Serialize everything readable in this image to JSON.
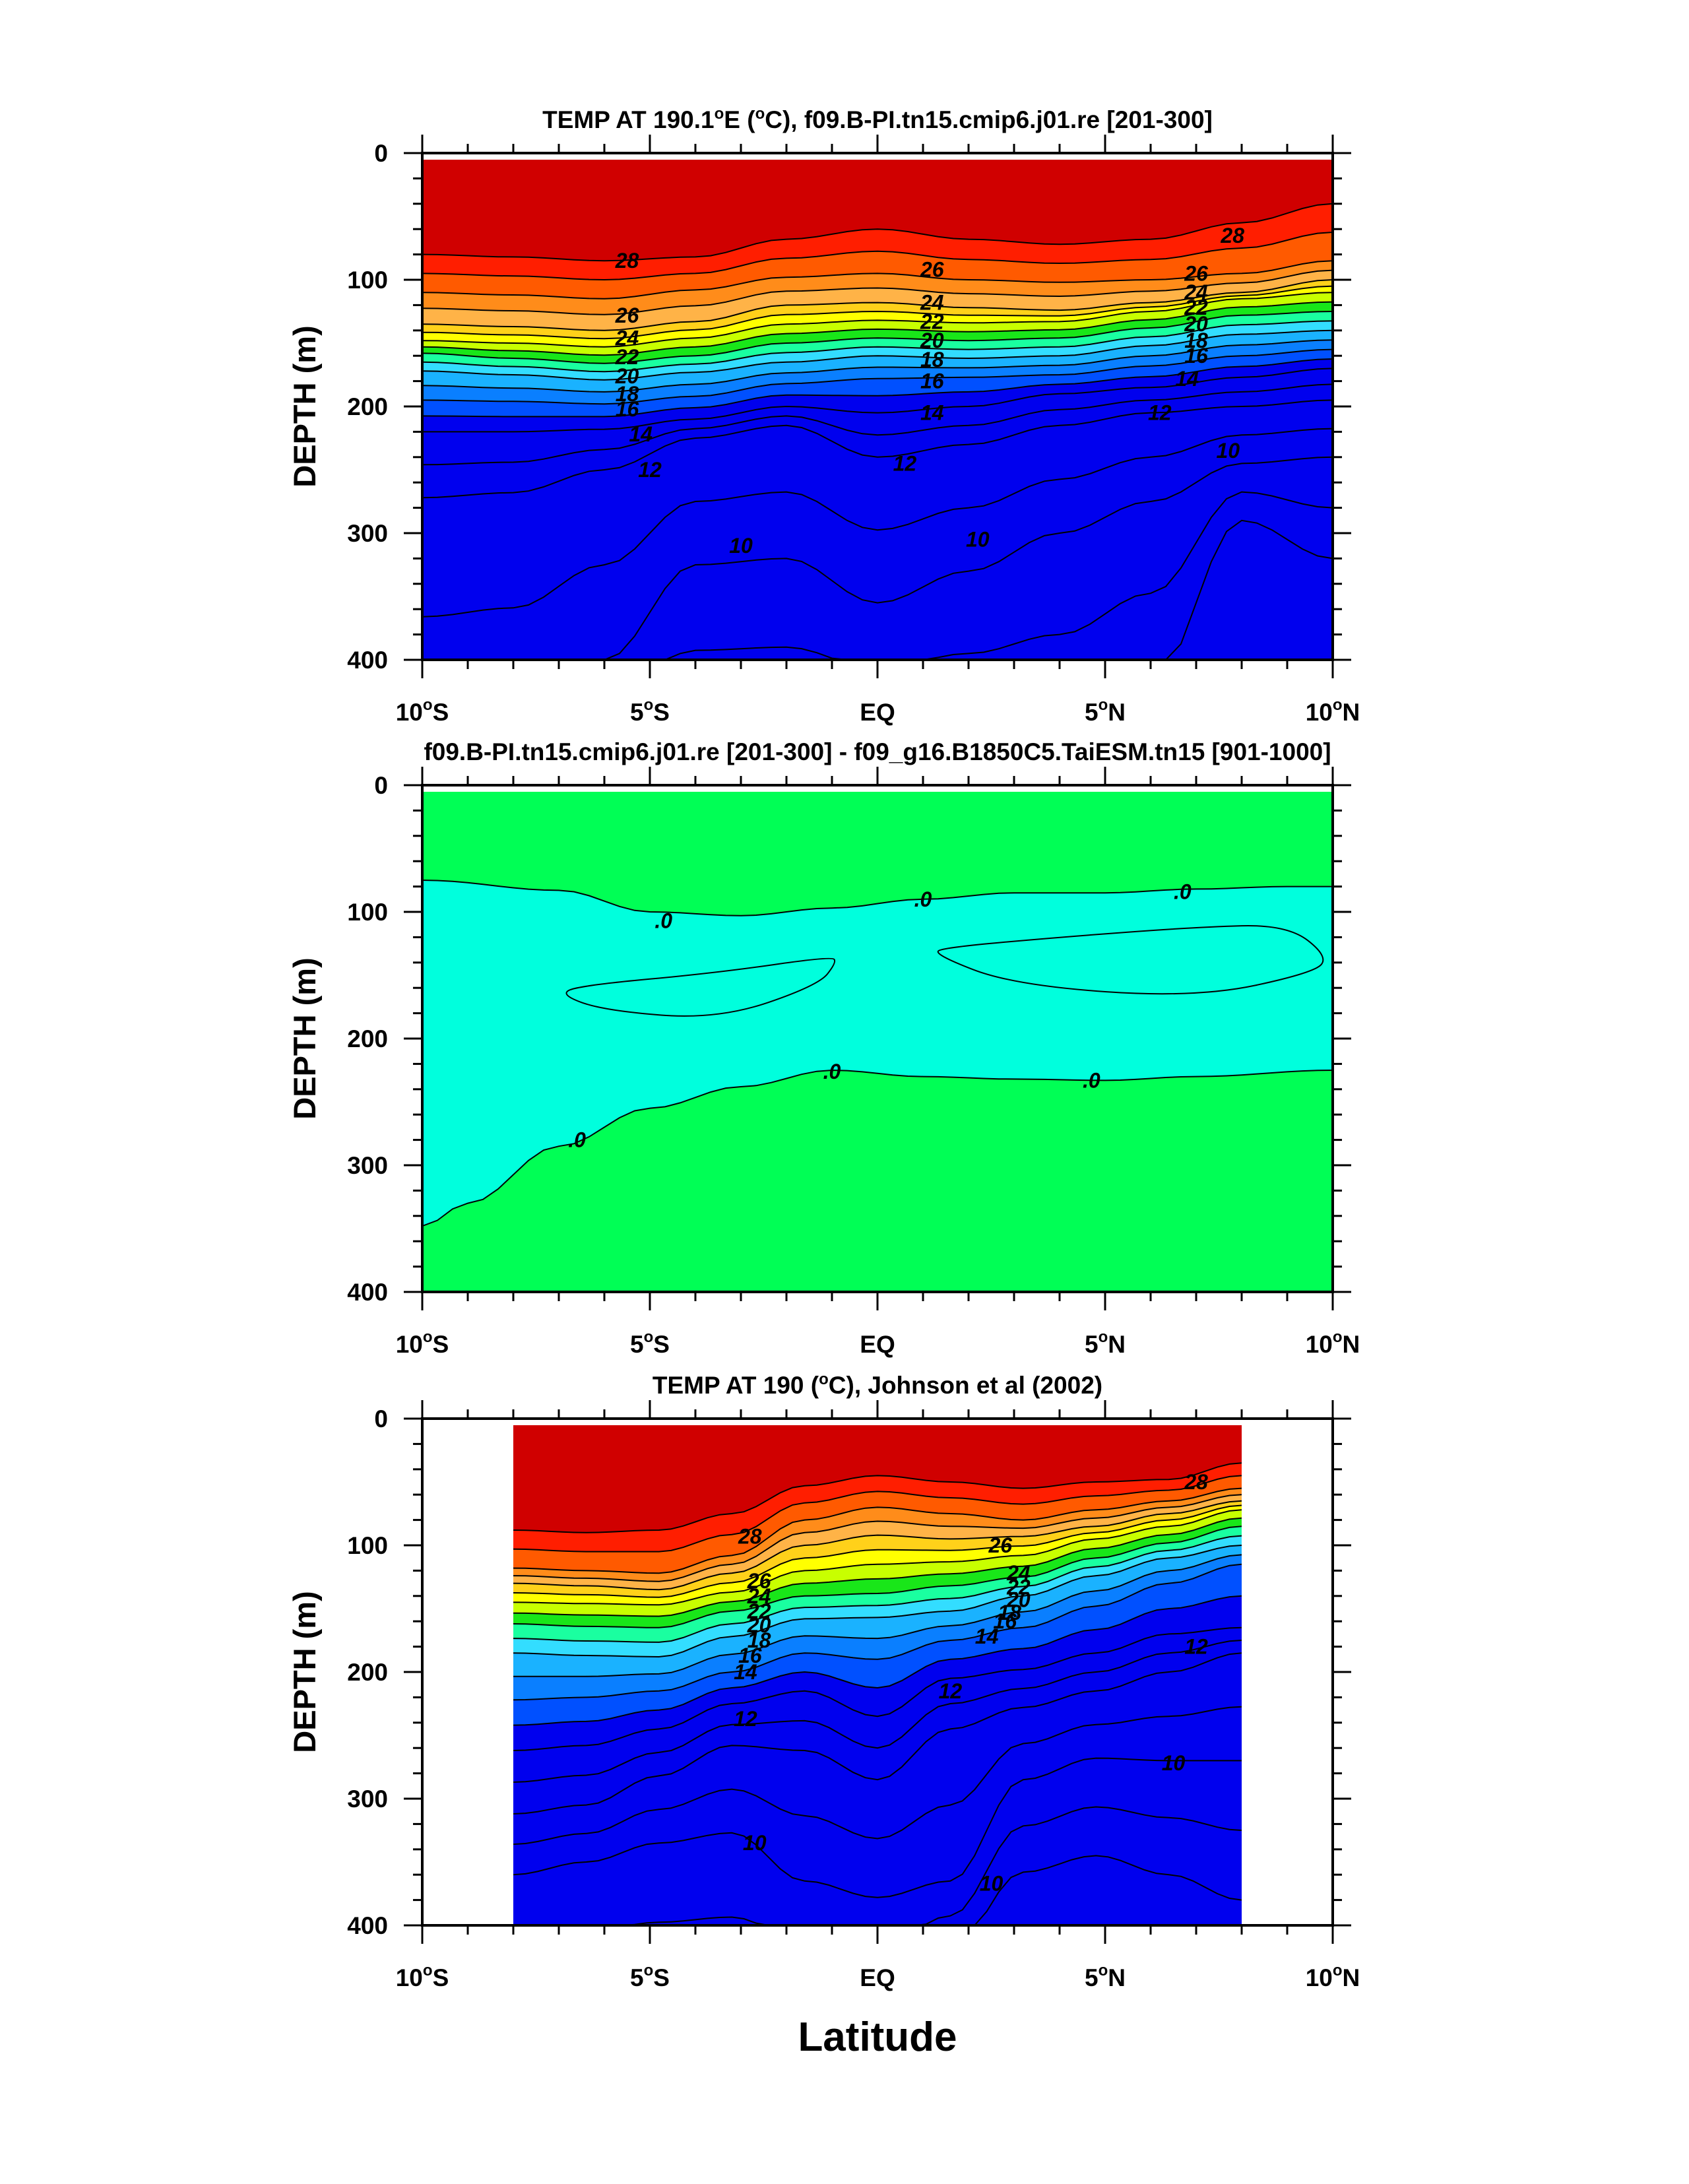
{
  "figure": {
    "xlabel": "Latitude"
  },
  "chart_data": [
    {
      "type": "heatmap",
      "title": "TEMP AT 190.1°E (°C), f09.B-PI.tn15.cmip6.j01.re [201-300]",
      "title_parts": [
        "TEMP AT 190.1",
        "o",
        "E (",
        "o",
        "C), f09.B-PI.tn15.cmip6.j01.re [201-300]"
      ],
      "xlabel": "",
      "ylabel": "DEPTH (m)",
      "xlim": [
        -10,
        10
      ],
      "ylim": [
        400,
        0
      ],
      "x_ticks": [
        {
          "num": "10",
          "hem": "S"
        },
        {
          "num": "5",
          "hem": "S"
        },
        {
          "num": "EQ",
          "hem": ""
        },
        {
          "num": "5",
          "hem": "N"
        },
        {
          "num": "10",
          "hem": "N"
        }
      ],
      "y_ticks": [
        "0",
        "100",
        "200",
        "300",
        "400"
      ],
      "x_range": [
        -10,
        10
      ],
      "colors": {
        "warm": "#d00000",
        "red": "#ff1e00",
        "orange_red": "#ff5a00",
        "orange": "#ff8c1a",
        "yellow": "#ffff00",
        "green": "#19e619",
        "cyan": "#33ddff",
        "light_blue": "#1ab2ff",
        "mid_blue": "#0a7fff",
        "blue": "#0050ff",
        "deep_blue": "#0000ee"
      },
      "series": [
        {
          "value": 28,
          "depth": [
            80,
            82,
            85,
            82,
            68,
            60,
            68,
            72,
            68,
            55,
            40
          ]
        },
        {
          "value": 26,
          "depth": [
            110,
            112,
            115,
            108,
            98,
            95,
            100,
            102,
            100,
            95,
            85
          ]
        },
        {
          "value": 24,
          "depth": [
            135,
            137,
            140,
            133,
            120,
            118,
            122,
            124,
            118,
            110,
            100
          ]
        },
        {
          "value": 22,
          "depth": [
            148,
            150,
            153,
            146,
            135,
            132,
            134,
            133,
            125,
            115,
            110
          ]
        },
        {
          "value": 20,
          "depth": [
            158,
            162,
            166,
            160,
            150,
            146,
            148,
            146,
            138,
            128,
            125
          ]
        },
        {
          "value": 18,
          "depth": [
            172,
            175,
            179,
            173,
            165,
            160,
            162,
            160,
            152,
            143,
            140
          ]
        },
        {
          "value": 16,
          "depth": [
            195,
            196,
            198,
            192,
            182,
            178,
            177,
            175,
            168,
            160,
            155
          ]
        },
        {
          "value": 14,
          "depth": [
            220,
            220,
            218,
            210,
            200,
            205,
            200,
            190,
            185,
            177,
            170
          ]
        },
        {
          "value": 12,
          "depth": [
            272,
            268,
            250,
            225,
            215,
            240,
            230,
            215,
            205,
            200,
            195
          ]
        },
        {
          "value": 10,
          "depth": [
            460,
            450,
            400,
            325,
            320,
            355,
            330,
            300,
            275,
            245,
            240
          ]
        },
        {
          "value": 9,
          "depth": [
            460,
            460,
            460,
            460,
            460,
            460,
            460,
            460,
            420,
            290,
            320
          ]
        }
      ],
      "contour_labels": [
        {
          "text": "28",
          "lat": -5.5,
          "depth": 85
        },
        {
          "text": "26",
          "lat": -5.5,
          "depth": 128
        },
        {
          "text": "24",
          "lat": -5.5,
          "depth": 146
        },
        {
          "text": "22",
          "lat": -5.5,
          "depth": 161
        },
        {
          "text": "20",
          "lat": -5.5,
          "depth": 176
        },
        {
          "text": "18",
          "lat": -5.5,
          "depth": 190
        },
        {
          "text": "16",
          "lat": -5.5,
          "depth": 202
        },
        {
          "text": "14",
          "lat": -5.2,
          "depth": 222
        },
        {
          "text": "12",
          "lat": -5.0,
          "depth": 250
        },
        {
          "text": "10",
          "lat": -3.0,
          "depth": 310
        },
        {
          "text": "26",
          "lat": 1.2,
          "depth": 92
        },
        {
          "text": "24",
          "lat": 1.2,
          "depth": 118
        },
        {
          "text": "22",
          "lat": 1.2,
          "depth": 133
        },
        {
          "text": "20",
          "lat": 1.2,
          "depth": 148
        },
        {
          "text": "18",
          "lat": 1.2,
          "depth": 163
        },
        {
          "text": "16",
          "lat": 1.2,
          "depth": 180
        },
        {
          "text": "14",
          "lat": 1.2,
          "depth": 205
        },
        {
          "text": "12",
          "lat": 0.6,
          "depth": 245
        },
        {
          "text": "10",
          "lat": 2.2,
          "depth": 305
        },
        {
          "text": "28",
          "lat": 7.8,
          "depth": 65
        },
        {
          "text": "26",
          "lat": 7.0,
          "depth": 95
        },
        {
          "text": "24",
          "lat": 7.0,
          "depth": 110
        },
        {
          "text": "22",
          "lat": 7.0,
          "depth": 122
        },
        {
          "text": "20",
          "lat": 7.0,
          "depth": 135
        },
        {
          "text": "18",
          "lat": 7.0,
          "depth": 148
        },
        {
          "text": "16",
          "lat": 7.0,
          "depth": 160
        },
        {
          "text": "14",
          "lat": 6.8,
          "depth": 178
        },
        {
          "text": "12",
          "lat": 6.2,
          "depth": 205
        },
        {
          "text": "10",
          "lat": 7.7,
          "depth": 235
        }
      ]
    },
    {
      "type": "heatmap",
      "title": "f09.B-PI.tn15.cmip6.j01.re [201-300] - f09_g16.B1850C5.TaiESM.tn15 [901-1000]",
      "title_parts": [
        "f09.B-PI.tn15.cmip6.j01.re [201-300] - f09_g16.B1850C5.TaiESM.tn15 [901-1000]"
      ],
      "xlabel": "",
      "ylabel": "DEPTH (m)",
      "xlim": [
        -10,
        10
      ],
      "ylim": [
        400,
        0
      ],
      "x_ticks": [
        {
          "num": "10",
          "hem": "S"
        },
        {
          "num": "5",
          "hem": "S"
        },
        {
          "num": "EQ",
          "hem": ""
        },
        {
          "num": "5",
          "hem": "N"
        },
        {
          "num": "10",
          "hem": "N"
        }
      ],
      "y_ticks": [
        "0",
        "100",
        "200",
        "300",
        "400"
      ],
      "colors": {
        "green": "#00ff55",
        "teal": "#00ffdd",
        "cyan": "#00ffff"
      },
      "upper_zero_contour": {
        "lat": [
          -10,
          -7,
          -5,
          -3,
          -1,
          1,
          3,
          5,
          7,
          9,
          10
        ],
        "depth": [
          75,
          83,
          100,
          103,
          97,
          90,
          85,
          85,
          82,
          80,
          80
        ]
      },
      "lower_zero_contour": {
        "lat": [
          -10,
          -9,
          -7,
          -5,
          -3,
          -1,
          1,
          3,
          5,
          7,
          10
        ],
        "depth": [
          348,
          330,
          285,
          255,
          238,
          225,
          230,
          232,
          233,
          230,
          225
        ]
      },
      "cyan_patches": [
        {
          "lat": [
            -7.0,
            -6.5,
            -3.5,
            -1.0,
            -0.9,
            -1.3,
            -3.5,
            -6.0
          ],
          "depth": [
            165,
            158,
            148,
            135,
            140,
            158,
            185,
            178
          ]
        },
        {
          "lat": [
            1.2,
            1.5,
            4.0,
            7.0,
            9.0,
            9.9,
            9.6,
            7.0,
            3.0
          ],
          "depth": [
            133,
            128,
            120,
            112,
            110,
            135,
            148,
            168,
            158
          ]
        }
      ],
      "contour_labels": [
        {
          "text": ".0",
          "lat": -4.7,
          "depth": 107
        },
        {
          "text": ".0",
          "lat": 1.0,
          "depth": 90
        },
        {
          "text": ".0",
          "lat": 6.7,
          "depth": 84
        },
        {
          "text": ".0",
          "lat": -6.6,
          "depth": 280
        },
        {
          "text": ".0",
          "lat": -1.0,
          "depth": 226
        },
        {
          "text": ".0",
          "lat": 4.7,
          "depth": 233
        }
      ]
    },
    {
      "type": "heatmap",
      "title": "TEMP AT 190 (°C), Johnson et al (2002)",
      "title_parts": [
        "TEMP AT 190 (",
        "o",
        "C), Johnson et al (2002)"
      ],
      "xlabel": "Latitude",
      "ylabel": "DEPTH (m)",
      "xlim": [
        -10,
        10
      ],
      "ylim": [
        400,
        0
      ],
      "x_ticks": [
        {
          "num": "10",
          "hem": "S"
        },
        {
          "num": "5",
          "hem": "S"
        },
        {
          "num": "EQ",
          "hem": ""
        },
        {
          "num": "5",
          "hem": "N"
        },
        {
          "num": "10",
          "hem": "N"
        }
      ],
      "y_ticks": [
        "0",
        "100",
        "200",
        "300",
        "400"
      ],
      "x_range": [
        -8,
        8
      ],
      "colors": {
        "warm": "#d00000",
        "red": "#ff1e00",
        "orange_red": "#ff5a00",
        "orange": "#ff8c1a",
        "yellow": "#ffff00",
        "green": "#19e619",
        "cyan": "#33ddff",
        "light_blue": "#1ab2ff",
        "mid_blue": "#0a7fff",
        "blue": "#0050ff",
        "deep_blue": "#0000ee"
      },
      "series": [
        {
          "value": 28,
          "depth": [
            88,
            90,
            88,
            75,
            53,
            45,
            50,
            55,
            50,
            48,
            35
          ]
        },
        {
          "value": 26,
          "depth": [
            118,
            120,
            122,
            108,
            80,
            70,
            75,
            80,
            72,
            65,
            55
          ]
        },
        {
          "value": 24,
          "depth": [
            130,
            132,
            135,
            122,
            100,
            92,
            95,
            93,
            85,
            75,
            65
          ]
        },
        {
          "value": 22,
          "depth": [
            145,
            146,
            147,
            137,
            120,
            115,
            113,
            108,
            95,
            85,
            72
          ]
        },
        {
          "value": 20,
          "depth": [
            162,
            164,
            165,
            152,
            140,
            138,
            132,
            125,
            110,
            98,
            85
          ]
        },
        {
          "value": 18,
          "depth": [
            185,
            187,
            188,
            172,
            158,
            157,
            152,
            140,
            124,
            110,
            100
          ]
        },
        {
          "value": 16,
          "depth": [
            222,
            220,
            215,
            200,
            185,
            190,
            175,
            165,
            148,
            130,
            115
          ]
        },
        {
          "value": 14,
          "depth": [
            262,
            258,
            245,
            225,
            215,
            235,
            205,
            198,
            185,
            170,
            165
          ]
        },
        {
          "value": 12,
          "depth": [
            312,
            305,
            282,
            258,
            262,
            285,
            245,
            228,
            215,
            200,
            185
          ]
        },
        {
          "value": 10,
          "depth": [
            360,
            350,
            335,
            327,
            365,
            378,
            365,
            285,
            268,
            270,
            270
          ]
        },
        {
          "value": 9,
          "depth": [
            460,
            460,
            460,
            460,
            460,
            460,
            420,
            358,
            345,
            360,
            380
          ]
        }
      ],
      "contour_labels": [
        {
          "text": "28",
          "lat": -2.8,
          "depth": 93
        },
        {
          "text": "26",
          "lat": -2.6,
          "depth": 128
        },
        {
          "text": "24",
          "lat": -2.6,
          "depth": 140
        },
        {
          "text": "22",
          "lat": -2.6,
          "depth": 152
        },
        {
          "text": "20",
          "lat": -2.6,
          "depth": 163
        },
        {
          "text": "18",
          "lat": -2.6,
          "depth": 175
        },
        {
          "text": "16",
          "lat": -2.8,
          "depth": 187
        },
        {
          "text": "14",
          "lat": -2.9,
          "depth": 200
        },
        {
          "text": "12",
          "lat": -2.9,
          "depth": 237
        },
        {
          "text": "10",
          "lat": -2.7,
          "depth": 335
        },
        {
          "text": "26",
          "lat": 2.7,
          "depth": 100
        },
        {
          "text": "24",
          "lat": 3.1,
          "depth": 122
        },
        {
          "text": "22",
          "lat": 3.1,
          "depth": 133
        },
        {
          "text": "20",
          "lat": 3.1,
          "depth": 143
        },
        {
          "text": "18",
          "lat": 2.9,
          "depth": 153
        },
        {
          "text": "16",
          "lat": 2.8,
          "depth": 160
        },
        {
          "text": "14",
          "lat": 2.4,
          "depth": 172
        },
        {
          "text": "12",
          "lat": 1.6,
          "depth": 215
        },
        {
          "text": "12",
          "lat": 7.0,
          "depth": 180
        },
        {
          "text": "10",
          "lat": 2.5,
          "depth": 367
        },
        {
          "text": "10",
          "lat": 6.5,
          "depth": 272
        },
        {
          "text": "28",
          "lat": 7.0,
          "depth": 50
        }
      ]
    }
  ]
}
